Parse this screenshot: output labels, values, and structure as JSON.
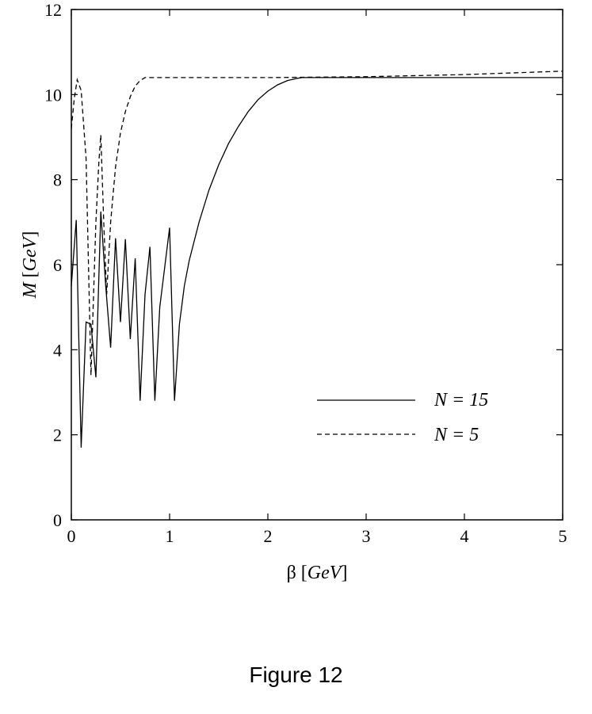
{
  "caption": "Figure 12",
  "chart_data": {
    "type": "line",
    "xlabel_prefix": "β",
    "xlabel_unit": "GeV",
    "ylabel_prefix": "M",
    "ylabel_unit": "GeV",
    "xlim": [
      0,
      5
    ],
    "ylim": [
      0,
      12
    ],
    "xticks": [
      "0",
      "1",
      "2",
      "3",
      "4",
      "5"
    ],
    "yticks": [
      "0",
      "2",
      "4",
      "6",
      "8",
      "10",
      "12"
    ],
    "grid": false,
    "legend_position": "bottom-right",
    "series": [
      {
        "name": "N = 15",
        "style": "solid",
        "color": "#000000",
        "x": [
          0,
          0.05,
          0.1,
          0.15,
          0.2,
          0.25,
          0.3,
          0.35,
          0.4,
          0.45,
          0.5,
          0.55,
          0.6,
          0.65,
          0.7,
          0.75,
          0.8,
          0.85,
          0.9,
          1.0,
          1.05,
          1.1,
          1.15,
          1.2,
          1.3,
          1.4,
          1.5,
          1.6,
          1.7,
          1.8,
          1.9,
          2.0,
          2.1,
          2.2,
          2.3,
          2.35,
          2.5,
          3.0,
          4.0,
          5.0
        ],
        "y": [
          5.5,
          7.05,
          1.7,
          4.65,
          4.6,
          3.35,
          7.25,
          5.5,
          4.05,
          6.62,
          4.65,
          6.6,
          4.25,
          6.15,
          2.8,
          5.3,
          6.42,
          2.8,
          5.0,
          6.87,
          2.8,
          4.6,
          5.5,
          6.1,
          7.0,
          7.75,
          8.35,
          8.85,
          9.25,
          9.6,
          9.88,
          10.08,
          10.23,
          10.33,
          10.38,
          10.4,
          10.4,
          10.4,
          10.4,
          10.4
        ]
      },
      {
        "name": "N = 5",
        "style": "dashed",
        "color": "#000000",
        "x": [
          0,
          0.03,
          0.06,
          0.1,
          0.15,
          0.2,
          0.25,
          0.28,
          0.3,
          0.33,
          0.36,
          0.4,
          0.45,
          0.5,
          0.55,
          0.6,
          0.65,
          0.7,
          0.75,
          0.8,
          1.0,
          2.0,
          3.0,
          4.0,
          5.0
        ],
        "y": [
          9.2,
          9.9,
          10.35,
          10.1,
          8.5,
          3.4,
          7.0,
          8.4,
          9.05,
          7.0,
          5.3,
          7.0,
          8.3,
          9.1,
          9.6,
          9.95,
          10.2,
          10.33,
          10.4,
          10.4,
          10.4,
          10.4,
          10.42,
          10.47,
          10.55
        ]
      }
    ]
  }
}
